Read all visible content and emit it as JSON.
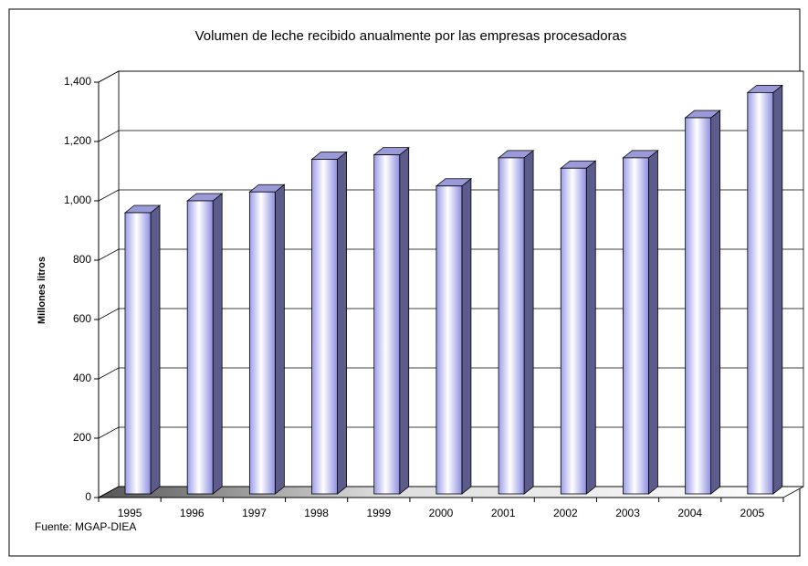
{
  "chart_data": {
    "type": "bar3d",
    "title": "Volumen de leche recibido anualmente por las empresas procesadoras",
    "y_label": "Millones litros",
    "source": "Fuente: MGAP-DIEA",
    "categories": [
      "1995",
      "1996",
      "1997",
      "1998",
      "1999",
      "2000",
      "2001",
      "2002",
      "2003",
      "2004",
      "2005"
    ],
    "values": [
      960,
      1000,
      1030,
      1140,
      1155,
      1050,
      1145,
      1110,
      1145,
      1280,
      1365
    ],
    "color": "#b8b8f0",
    "ylim": [
      0,
      1400
    ],
    "yticks": [
      0,
      200,
      400,
      600,
      800,
      {
        "value": 1000,
        "label": "1,000"
      },
      {
        "value": 1200,
        "label": "1,200"
      },
      {
        "value": 1400,
        "label": "1,400"
      }
    ],
    "grid": true
  }
}
